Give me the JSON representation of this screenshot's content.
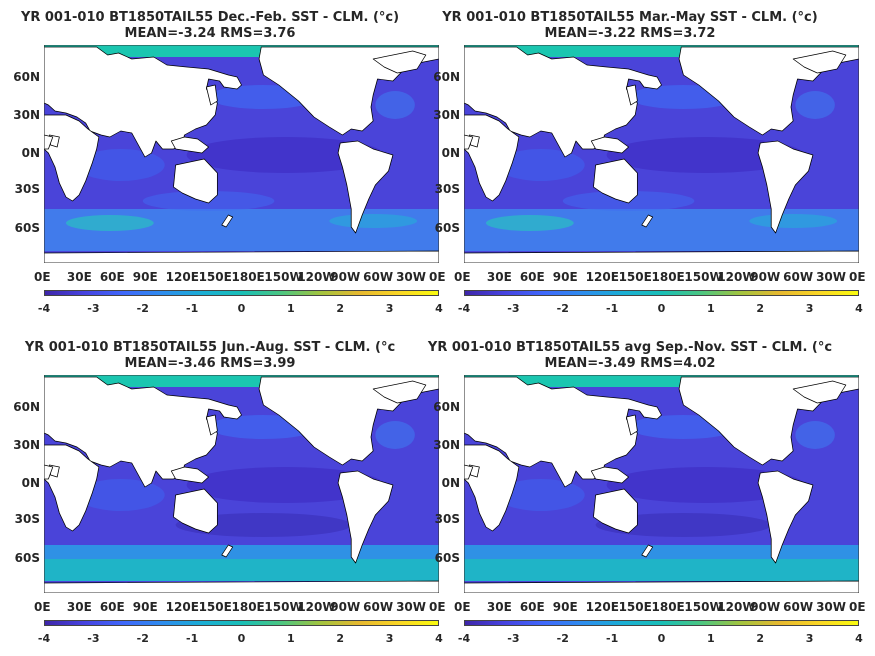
{
  "colors": {
    "land": "#ffffff",
    "ocean_base": "#4a44d9",
    "cold": "#3e26a8",
    "warm_anom": "#1bc6b0",
    "mid": "#3f78f0",
    "coast": "#000000"
  },
  "lat_labels": [
    "60N",
    "30N",
    "0N",
    "30S",
    "60S"
  ],
  "lon_labels": [
    "0E",
    "30E",
    "60E",
    "90E",
    "120E",
    "150E",
    "180E",
    "150W",
    "120W",
    "90W",
    "60W",
    "30W",
    "0E"
  ],
  "colorbar_ticks": [
    "-4",
    "-3",
    "-2",
    "-1",
    "0",
    "1",
    "2",
    "3",
    "4"
  ],
  "panels": [
    {
      "title": "YR 001-010 BT1850TAIL55  Dec.-Feb. SST - CLM. (°c)",
      "stats": "MEAN=-3.24   RMS=3.76"
    },
    {
      "title": "YR 001-010 BT1850TAIL55 Mar.-May SST - CLM. (°c)",
      "stats": "MEAN=-3.22   RMS=3.72"
    },
    {
      "title": "YR 001-010 BT1850TAIL55 Jun.-Aug. SST - CLM. (°c",
      "stats": "MEAN=-3.46   RMS=3.99"
    },
    {
      "title": "YR 001-010 BT1850TAIL55 avg Sep.-Nov. SST - CLM. (°c",
      "stats": "MEAN=-3.49   RMS=4.02"
    }
  ],
  "colorbar": {
    "min": -4,
    "max": 4
  }
}
